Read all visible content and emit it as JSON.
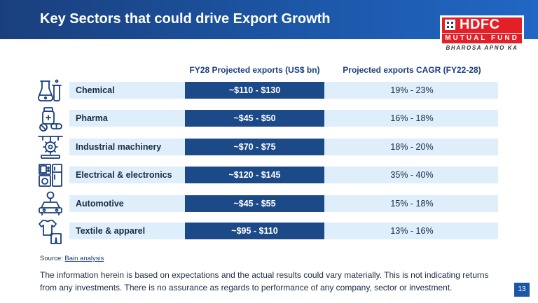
{
  "title": "Key Sectors that could drive Export Growth",
  "logo": {
    "name": "HDFC",
    "subtitle": "MUTUAL FUND",
    "tagline": "BHAROSA APNO KA"
  },
  "columns": {
    "exports": "FY28 Projected exports (US$ bn)",
    "cagr": "Projected exports CAGR (FY22-28)"
  },
  "rows": [
    {
      "sector": "Chemical",
      "exports": "~$110 - $130",
      "cagr": "19% - 23%",
      "icon": "chemical-flask-icon"
    },
    {
      "sector": "Pharma",
      "exports": "~$45 - $50",
      "cagr": "16% - 18%",
      "icon": "pharma-pills-icon"
    },
    {
      "sector": "Industrial machinery",
      "exports": "~$70 - $75",
      "cagr": "18% - 20%",
      "icon": "industrial-gear-icon"
    },
    {
      "sector": "Electrical & electronics",
      "exports": "~$120 - $145",
      "cagr": "35% - 40%",
      "icon": "appliances-icon"
    },
    {
      "sector": "Automotive",
      "exports": "~$45 - $55",
      "cagr": "15% - 18%",
      "icon": "car-icon"
    },
    {
      "sector": "Textile & apparel",
      "exports": "~$95 - $110",
      "cagr": "13% - 16%",
      "icon": "apparel-icon"
    }
  ],
  "source": {
    "label": "Source:",
    "link_text": "Bain analysis"
  },
  "disclaimer": "The information herein is based on expectations and the actual results could vary materially. This is not indicating returns from any investments. There is no assurance as regards to performance of any company, sector or investment.",
  "page_number": "13",
  "colors": {
    "brand_blue": "#1c4a88",
    "brand_red": "#e42027",
    "row_bg": "#deeefb"
  }
}
